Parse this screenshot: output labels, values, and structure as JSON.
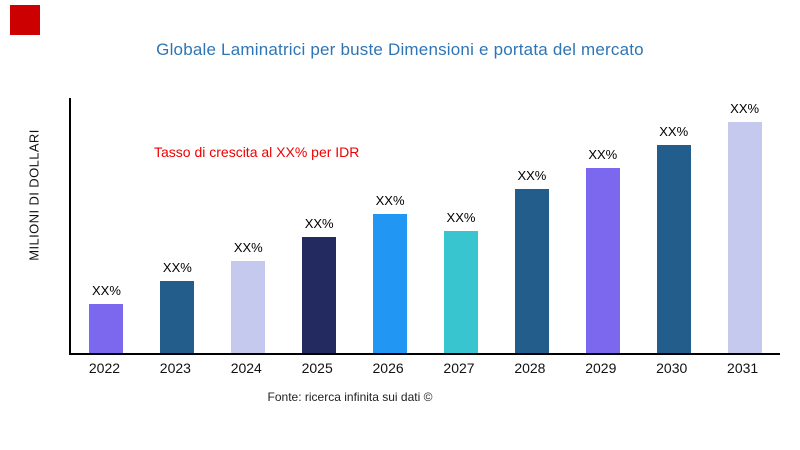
{
  "title": "Globale Laminatrici per buste Dimensioni e portata del mercato",
  "ylabel": "MILIONI DI DOLLARI",
  "annotation": "Tasso di crescita al XX% per IDR",
  "source": "Fonte: ricerca infinita sui dati ©",
  "colors": {
    "title": "#2e75b6",
    "annotation": "#ee0000",
    "red_square": "#cc0000",
    "axis": "#000000"
  },
  "chart_data": {
    "type": "bar",
    "title": "Globale Laminatrici per buste Dimensioni e portata del mercato",
    "xlabel": "",
    "ylabel": "MILIONI DI DOLLARI",
    "categories": [
      "2022",
      "2023",
      "2024",
      "2025",
      "2026",
      "2027",
      "2028",
      "2029",
      "2030",
      "2031"
    ],
    "values": [
      21,
      31,
      40,
      50,
      60,
      53,
      71,
      80,
      90,
      100
    ],
    "ylim": [
      0,
      110
    ],
    "bar_labels": [
      "XX%",
      "XX%",
      "XX%",
      "XX%",
      "XX%",
      "XX%",
      "XX%",
      "XX%",
      "XX%",
      "XX%"
    ],
    "bar_colors": [
      "#7b68ee",
      "#235d8c",
      "#c5c9ee",
      "#222a60",
      "#2196f3",
      "#38c5d0",
      "#235d8c",
      "#7b68ee",
      "#235d8c",
      "#c5c9ee"
    ],
    "annotations": [
      "Tasso di crescita al XX% per IDR"
    ],
    "grid": false,
    "legend": false,
    "source": "Fonte: ricerca infinita sui dati ©"
  }
}
